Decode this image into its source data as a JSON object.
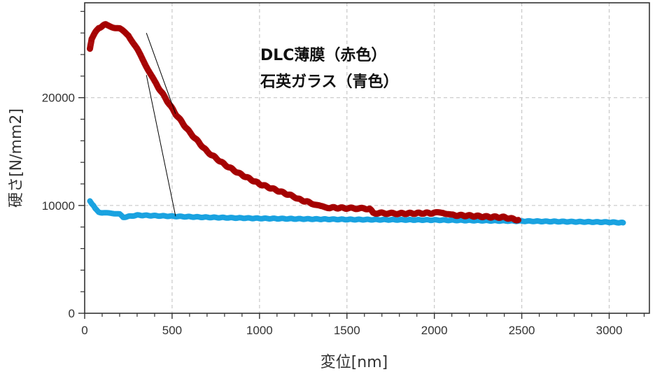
{
  "chart_data": {
    "type": "scatter",
    "title": "",
    "xlabel": "変位[nm]",
    "ylabel": "硬さ[N/mm2]",
    "xlim": [
      0,
      3230
    ],
    "ylim": [
      0,
      28800
    ],
    "grid": true,
    "grid_style": "dashed",
    "x_ticks": [
      0,
      500,
      1000,
      1500,
      2000,
      2500,
      3000
    ],
    "x_tick_labels": [
      "0",
      "500",
      "1000",
      "1500",
      "2000",
      "2500",
      "3000"
    ],
    "y_ticks": [
      0,
      10000,
      20000
    ],
    "y_tick_labels": [
      "0",
      "10000",
      "20000"
    ],
    "x_minor_step": 100,
    "y_minor_step": 2000,
    "legend_position": "none",
    "annotations": [
      {
        "text": "DLC薄膜（赤色）",
        "target_series": "DLC薄膜",
        "label_xy": [
          353,
          26000
        ],
        "point_xy": [
          520,
          18500
        ]
      },
      {
        "text": "石英ガラス（青色）",
        "target_series": "石英ガラス",
        "label_xy": [
          353,
          22100
        ],
        "point_xy": [
          520,
          9000
        ]
      }
    ],
    "series": [
      {
        "name": "DLC薄膜",
        "color": "#a50000",
        "x": [
          30,
          40,
          60,
          80,
          100,
          120,
          150,
          200,
          250,
          300,
          350,
          400,
          460,
          520,
          600,
          700,
          800,
          880,
          1000,
          1100,
          1200,
          1220,
          1300,
          1350,
          1400,
          1500,
          1630,
          1650,
          1800,
          2000,
          2050,
          2100,
          2200,
          2300,
          2400,
          2480
        ],
        "values": [
          24500,
          25500,
          26000,
          26500,
          26600,
          26800,
          26600,
          26400,
          25800,
          24500,
          23000,
          21500,
          20000,
          18500,
          16800,
          15000,
          13800,
          13000,
          12000,
          11400,
          10800,
          10600,
          10200,
          9900,
          9800,
          9750,
          9700,
          9300,
          9250,
          9300,
          9350,
          9100,
          9050,
          8950,
          8900,
          8650
        ]
      },
      {
        "name": "石英ガラス",
        "color": "#19a2e0",
        "x": [
          30,
          40,
          50,
          60,
          80,
          100,
          150,
          200,
          220,
          300,
          400,
          500,
          700,
          1000,
          1500,
          2000,
          2500,
          3000,
          3080
        ],
        "values": [
          10400,
          10200,
          10000,
          9700,
          9400,
          9300,
          9300,
          9200,
          8900,
          9100,
          9050,
          9000,
          8900,
          8800,
          8700,
          8650,
          8550,
          8450,
          8400
        ]
      }
    ]
  },
  "colors": {
    "dlc": "#a50000",
    "quartz": "#19a2e0",
    "grid": "#c8c8c8",
    "axis": "#333333"
  }
}
